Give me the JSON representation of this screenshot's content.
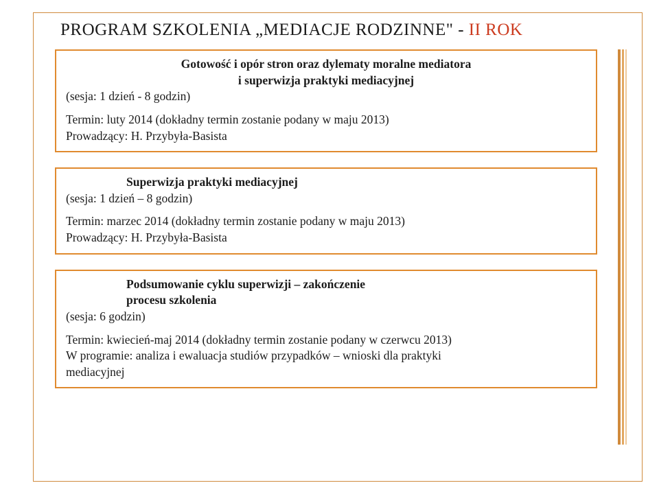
{
  "title_main": "PROGRAM SZKOLENIA „MEDIACJE RODZINNE\" - ",
  "title_accent": "II ROK",
  "cards": [
    {
      "heading_l1": "Gotowość i opór stron oraz dylematy moralne mediatora",
      "heading_l2": "i superwizja praktyki mediacyjnej",
      "session": "(sesja: 1 dzień - 8 godzin)",
      "termin": "Termin: luty 2014 (dokładny termin zostanie podany w maju 2013)",
      "prowadzacy": "Prowadzący: H. Przybyła-Basista"
    },
    {
      "heading_l1": "Superwizja praktyki mediacyjnej",
      "session": "(sesja: 1 dzień – 8 godzin)",
      "termin": "Termin: marzec 2014 (dokładny termin zostanie podany w maju 2013)",
      "prowadzacy": "Prowadzący: H. Przybyła-Basista"
    },
    {
      "heading_l1": "Podsumowanie cyklu superwizji – zakończenie",
      "heading_l2": "procesu szkolenia",
      "session": "(sesja: 6 godzin)",
      "termin": "Termin: kwiecień-maj  2014 (dokładny termin zostanie podany w czerwcu 2013)",
      "extra_l1": "W programie: analiza i ewaluacja studiów przypadków – wnioski dla praktyki",
      "extra_l2": "mediacyjnej"
    }
  ],
  "colors": {
    "border": "#e08a2e",
    "frame": "#d08a3c",
    "accent_text": "#cc3b1f",
    "text": "#1b1b1b",
    "bg": "#ffffff"
  }
}
